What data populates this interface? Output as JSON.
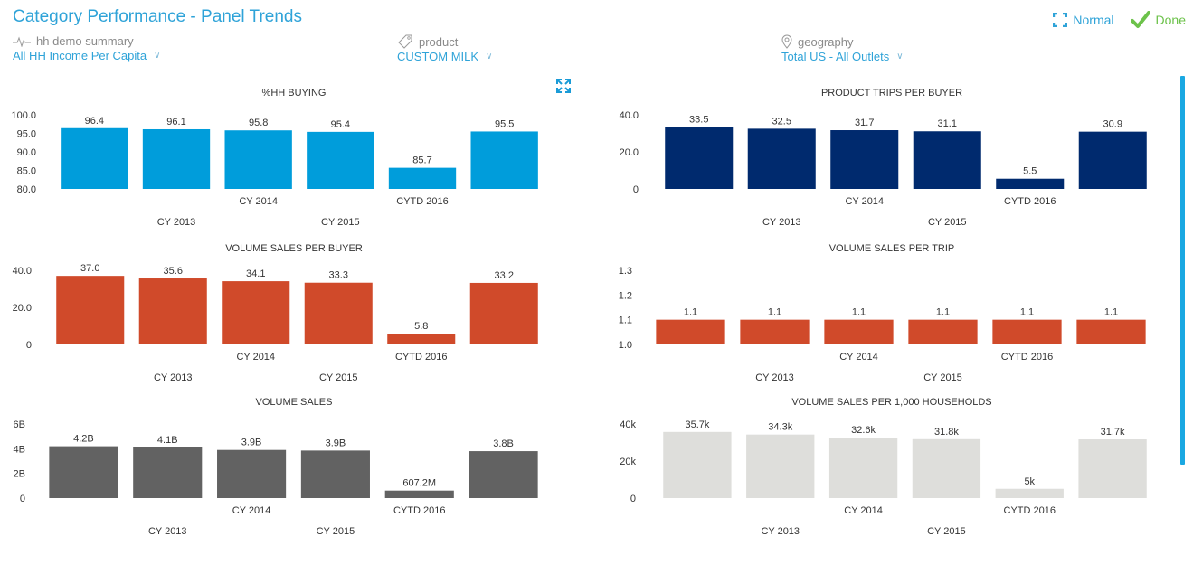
{
  "header": {
    "title": "Category Performance - Panel Trends",
    "normal_label": "Normal",
    "done_label": "Done",
    "accent_color": "#2fa3d8",
    "done_color": "#6cc24a"
  },
  "filters": [
    {
      "label": "hh demo summary",
      "value": "All HH Income Per Capita",
      "icon": "pulse-icon"
    },
    {
      "label": "product",
      "value": "CUSTOM MILK",
      "icon": "tag-icon"
    },
    {
      "label": "geography",
      "value": "Total US - All Outlets",
      "icon": "location-pin-icon"
    }
  ],
  "chart_data": [
    {
      "type": "bar",
      "title": "%HH BUYING",
      "categories": [
        "",
        "CY 2013",
        "CY 2014",
        "CY 2015",
        "CYTD 2016",
        ""
      ],
      "values": [
        96.4,
        96.1,
        95.8,
        95.4,
        85.7,
        95.5
      ],
      "value_labels": [
        "96.4",
        "96.1",
        "95.8",
        "95.4",
        "85.7",
        "95.5"
      ],
      "yticks": [
        "80.0",
        "85.0",
        "90.0",
        "95.0",
        "100.0"
      ],
      "ylim": [
        80,
        100
      ],
      "color": "#009ddb",
      "xlabel": "",
      "ylabel": "",
      "grid": false
    },
    {
      "type": "bar",
      "title": "PRODUCT TRIPS PER BUYER",
      "categories": [
        "",
        "CY 2013",
        "CY 2014",
        "CY 2015",
        "CYTD 2016",
        ""
      ],
      "values": [
        33.5,
        32.5,
        31.7,
        31.1,
        5.5,
        30.9
      ],
      "value_labels": [
        "33.5",
        "32.5",
        "31.7",
        "31.1",
        "5.5",
        "30.9"
      ],
      "yticks": [
        "0",
        "20.0",
        "40.0"
      ],
      "ylim": [
        0,
        40
      ],
      "color": "#002a6e",
      "xlabel": "",
      "ylabel": "",
      "grid": false
    },
    {
      "type": "bar",
      "title": "VOLUME SALES PER BUYER",
      "categories": [
        "",
        "CY 2013",
        "CY 2014",
        "CY 2015",
        "CYTD 2016",
        ""
      ],
      "values": [
        37.0,
        35.6,
        34.1,
        33.3,
        5.8,
        33.2
      ],
      "value_labels": [
        "37.0",
        "35.6",
        "34.1",
        "33.3",
        "5.8",
        "33.2"
      ],
      "yticks": [
        "0",
        "20.0",
        "40.0"
      ],
      "ylim": [
        0,
        40
      ],
      "color": "#d04a2a",
      "xlabel": "",
      "ylabel": "",
      "grid": false
    },
    {
      "type": "bar",
      "title": "VOLUME SALES PER TRIP",
      "categories": [
        "",
        "CY 2013",
        "CY 2014",
        "CY 2015",
        "CYTD 2016",
        ""
      ],
      "values": [
        1.1,
        1.1,
        1.1,
        1.1,
        1.1,
        1.1
      ],
      "value_labels": [
        "1.1",
        "1.1",
        "1.1",
        "1.1",
        "1.1",
        "1.1"
      ],
      "yticks": [
        "1.0",
        "1.1",
        "1.2",
        "1.3"
      ],
      "ylim": [
        1.0,
        1.3
      ],
      "color": "#d04a2a",
      "xlabel": "",
      "ylabel": "",
      "grid": false
    },
    {
      "type": "bar",
      "title": "VOLUME SALES",
      "categories": [
        "",
        "CY 2013",
        "CY 2014",
        "CY 2015",
        "CYTD 2016",
        ""
      ],
      "values": [
        4200000000,
        4100000000,
        3900000000,
        3850000000,
        607200000,
        3800000000
      ],
      "value_labels": [
        "4.2B",
        "4.1B",
        "3.9B",
        "3.9B",
        "607.2M",
        "3.8B"
      ],
      "yticks": [
        "0",
        "2B",
        "4B",
        "6B"
      ],
      "ylim": [
        0,
        6000000000
      ],
      "color": "#626262",
      "xlabel": "",
      "ylabel": "",
      "grid": false
    },
    {
      "type": "bar",
      "title": "VOLUME SALES PER 1,000 HOUSEHOLDS",
      "categories": [
        "",
        "CY 2013",
        "CY 2014",
        "CY 2015",
        "CYTD 2016",
        ""
      ],
      "values": [
        35700,
        34300,
        32600,
        31800,
        5000,
        31700
      ],
      "value_labels": [
        "35.7k",
        "34.3k",
        "32.6k",
        "31.8k",
        "5k",
        "31.7k"
      ],
      "yticks": [
        "0",
        "20k",
        "40k"
      ],
      "ylim": [
        0,
        40000
      ],
      "color": "#dededb",
      "xlabel": "",
      "ylabel": "",
      "grid": false
    }
  ]
}
